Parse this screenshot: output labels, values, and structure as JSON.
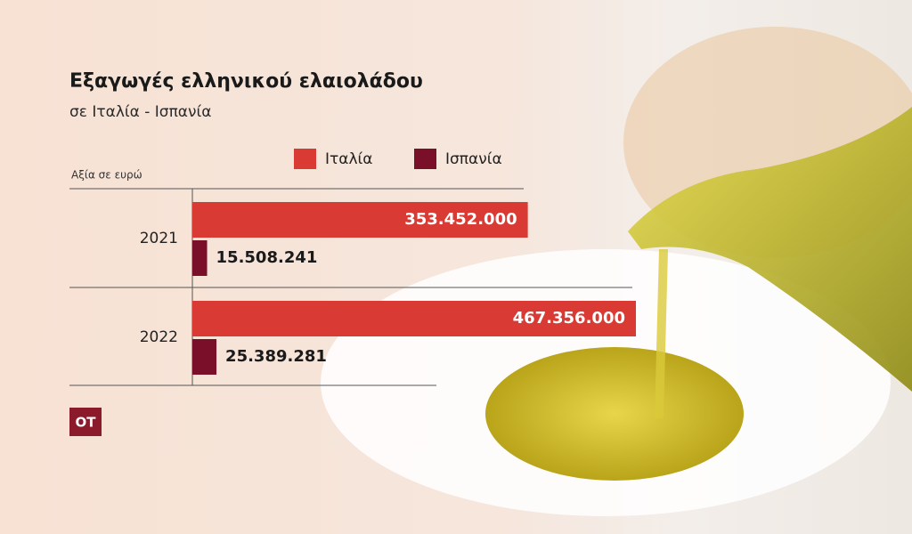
{
  "chart_data": {
    "type": "bar",
    "orientation": "horizontal",
    "title": "Εξαγωγές ελληνικού ελαιολάδου",
    "subtitle": "σε Ιταλία - Ισπανία",
    "value_axis_label": "Αξία σε ευρώ",
    "categories": [
      "2021",
      "2022"
    ],
    "series": [
      {
        "name": "Ιταλία",
        "color": "#d93a33",
        "values": [
          353452000,
          467356000
        ],
        "value_labels": [
          "353.452.000",
          "467.356.000"
        ]
      },
      {
        "name": "Ισπανία",
        "color": "#7a0f2a",
        "values": [
          15508241,
          25389281
        ],
        "value_labels": [
          "15.508.241",
          "25.389.281"
        ]
      }
    ],
    "logo": "OT"
  }
}
